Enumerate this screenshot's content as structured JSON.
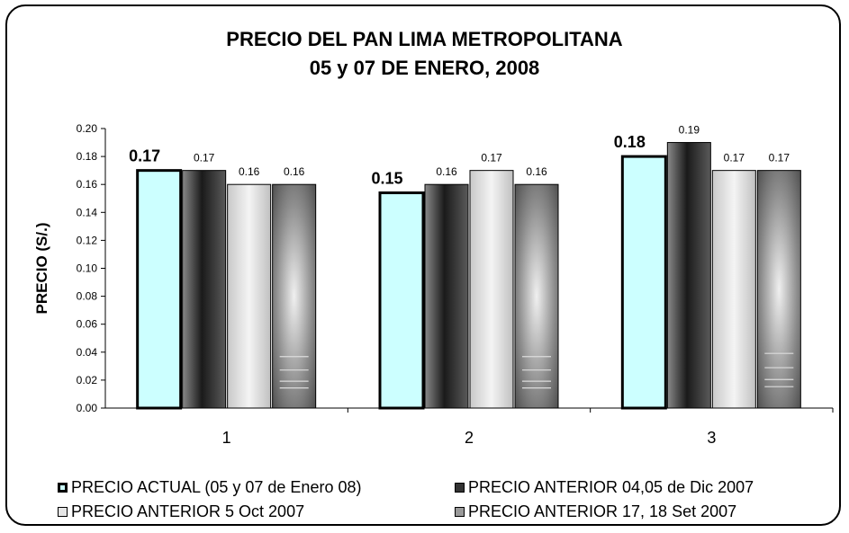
{
  "chart_data": {
    "type": "bar",
    "title": [
      "PRECIO DEL PAN LIMA METROPOLITANA",
      "05 y 07 DE ENERO, 2008"
    ],
    "ylabel": "PRECIO (S/.)",
    "xlabel": "",
    "categories": [
      "1",
      "2",
      "3"
    ],
    "ylim": [
      0,
      0.2
    ],
    "yticks": [
      "0.00",
      "0.02",
      "0.04",
      "0.06",
      "0.08",
      "0.10",
      "0.12",
      "0.14",
      "0.16",
      "0.18",
      "0.20"
    ],
    "series": [
      {
        "name": "PRECIO ACTUAL (05 y 07 de Enero 08)",
        "values": [
          0.17,
          0.154,
          0.18
        ],
        "labels": [
          "0.17",
          "0.15",
          "0.18"
        ],
        "color": "#ccffff"
      },
      {
        "name": "PRECIO ANTERIOR 04,05 de Dic 2007",
        "values": [
          0.17,
          0.16,
          0.19
        ],
        "labels": [
          "0.17",
          "0.16",
          "0.19"
        ],
        "color": "#333333"
      },
      {
        "name": "PRECIO ANTERIOR 5 Oct 2007",
        "values": [
          0.16,
          0.17,
          0.17
        ],
        "labels": [
          "0.16",
          "0.17",
          "0.17"
        ],
        "color": "#d9d9d9"
      },
      {
        "name": "PRECIO ANTERIOR 17, 18 Set 2007",
        "values": [
          0.16,
          0.16,
          0.17
        ],
        "labels": [
          "0.16",
          "0.16",
          "0.17"
        ],
        "color": "#808080"
      }
    ],
    "grid": false,
    "legend_position": "bottom"
  }
}
